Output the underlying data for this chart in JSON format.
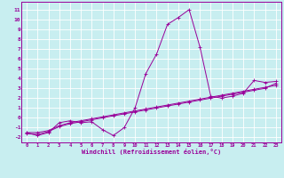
{
  "xlabel": "Windchill (Refroidissement éolien,°C)",
  "bg_color": "#c8eef0",
  "line_color": "#990099",
  "grid_color": "#ffffff",
  "x_ticks": [
    0,
    1,
    2,
    3,
    4,
    5,
    6,
    7,
    8,
    9,
    10,
    11,
    12,
    13,
    14,
    15,
    16,
    17,
    18,
    19,
    20,
    21,
    22,
    23
  ],
  "y_ticks": [
    -2,
    -1,
    0,
    1,
    2,
    3,
    4,
    5,
    6,
    7,
    8,
    9,
    10,
    11
  ],
  "ylim": [
    -2.5,
    11.8
  ],
  "xlim": [
    -0.5,
    23.5
  ],
  "series1_x": [
    0,
    1,
    2,
    3,
    4,
    5,
    6,
    7,
    8,
    9,
    10,
    11,
    12,
    13,
    14,
    15,
    16,
    17,
    18,
    19,
    20,
    21,
    22,
    23
  ],
  "series1_y": [
    -1.5,
    -1.8,
    -1.5,
    -0.5,
    -0.3,
    -0.5,
    -0.4,
    -1.2,
    -1.8,
    -1.0,
    1.0,
    4.5,
    6.5,
    9.5,
    10.2,
    11.0,
    7.2,
    2.2,
    2.0,
    2.2,
    2.5,
    3.8,
    3.6,
    3.7
  ],
  "series2_x": [
    0,
    1,
    2,
    3,
    4,
    5,
    6,
    7,
    8,
    9,
    10,
    11,
    12,
    13,
    14,
    15,
    16,
    17,
    18,
    19,
    20,
    21,
    22,
    23
  ],
  "series2_y": [
    -1.5,
    -1.5,
    -1.3,
    -0.8,
    -0.5,
    -0.3,
    -0.1,
    0.1,
    0.3,
    0.5,
    0.7,
    0.9,
    1.1,
    1.3,
    1.5,
    1.7,
    1.9,
    2.1,
    2.3,
    2.5,
    2.7,
    2.9,
    3.1,
    3.3
  ],
  "series3_x": [
    0,
    1,
    2,
    3,
    4,
    5,
    6,
    7,
    8,
    9,
    10,
    11,
    12,
    13,
    14,
    15,
    16,
    17,
    18,
    19,
    20,
    21,
    22,
    23
  ],
  "series3_y": [
    -1.6,
    -1.7,
    -1.4,
    -0.9,
    -0.6,
    -0.4,
    -0.2,
    0.0,
    0.2,
    0.4,
    0.6,
    0.8,
    1.0,
    1.2,
    1.4,
    1.6,
    1.8,
    2.0,
    2.2,
    2.4,
    2.6,
    2.8,
    3.0,
    3.5
  ]
}
